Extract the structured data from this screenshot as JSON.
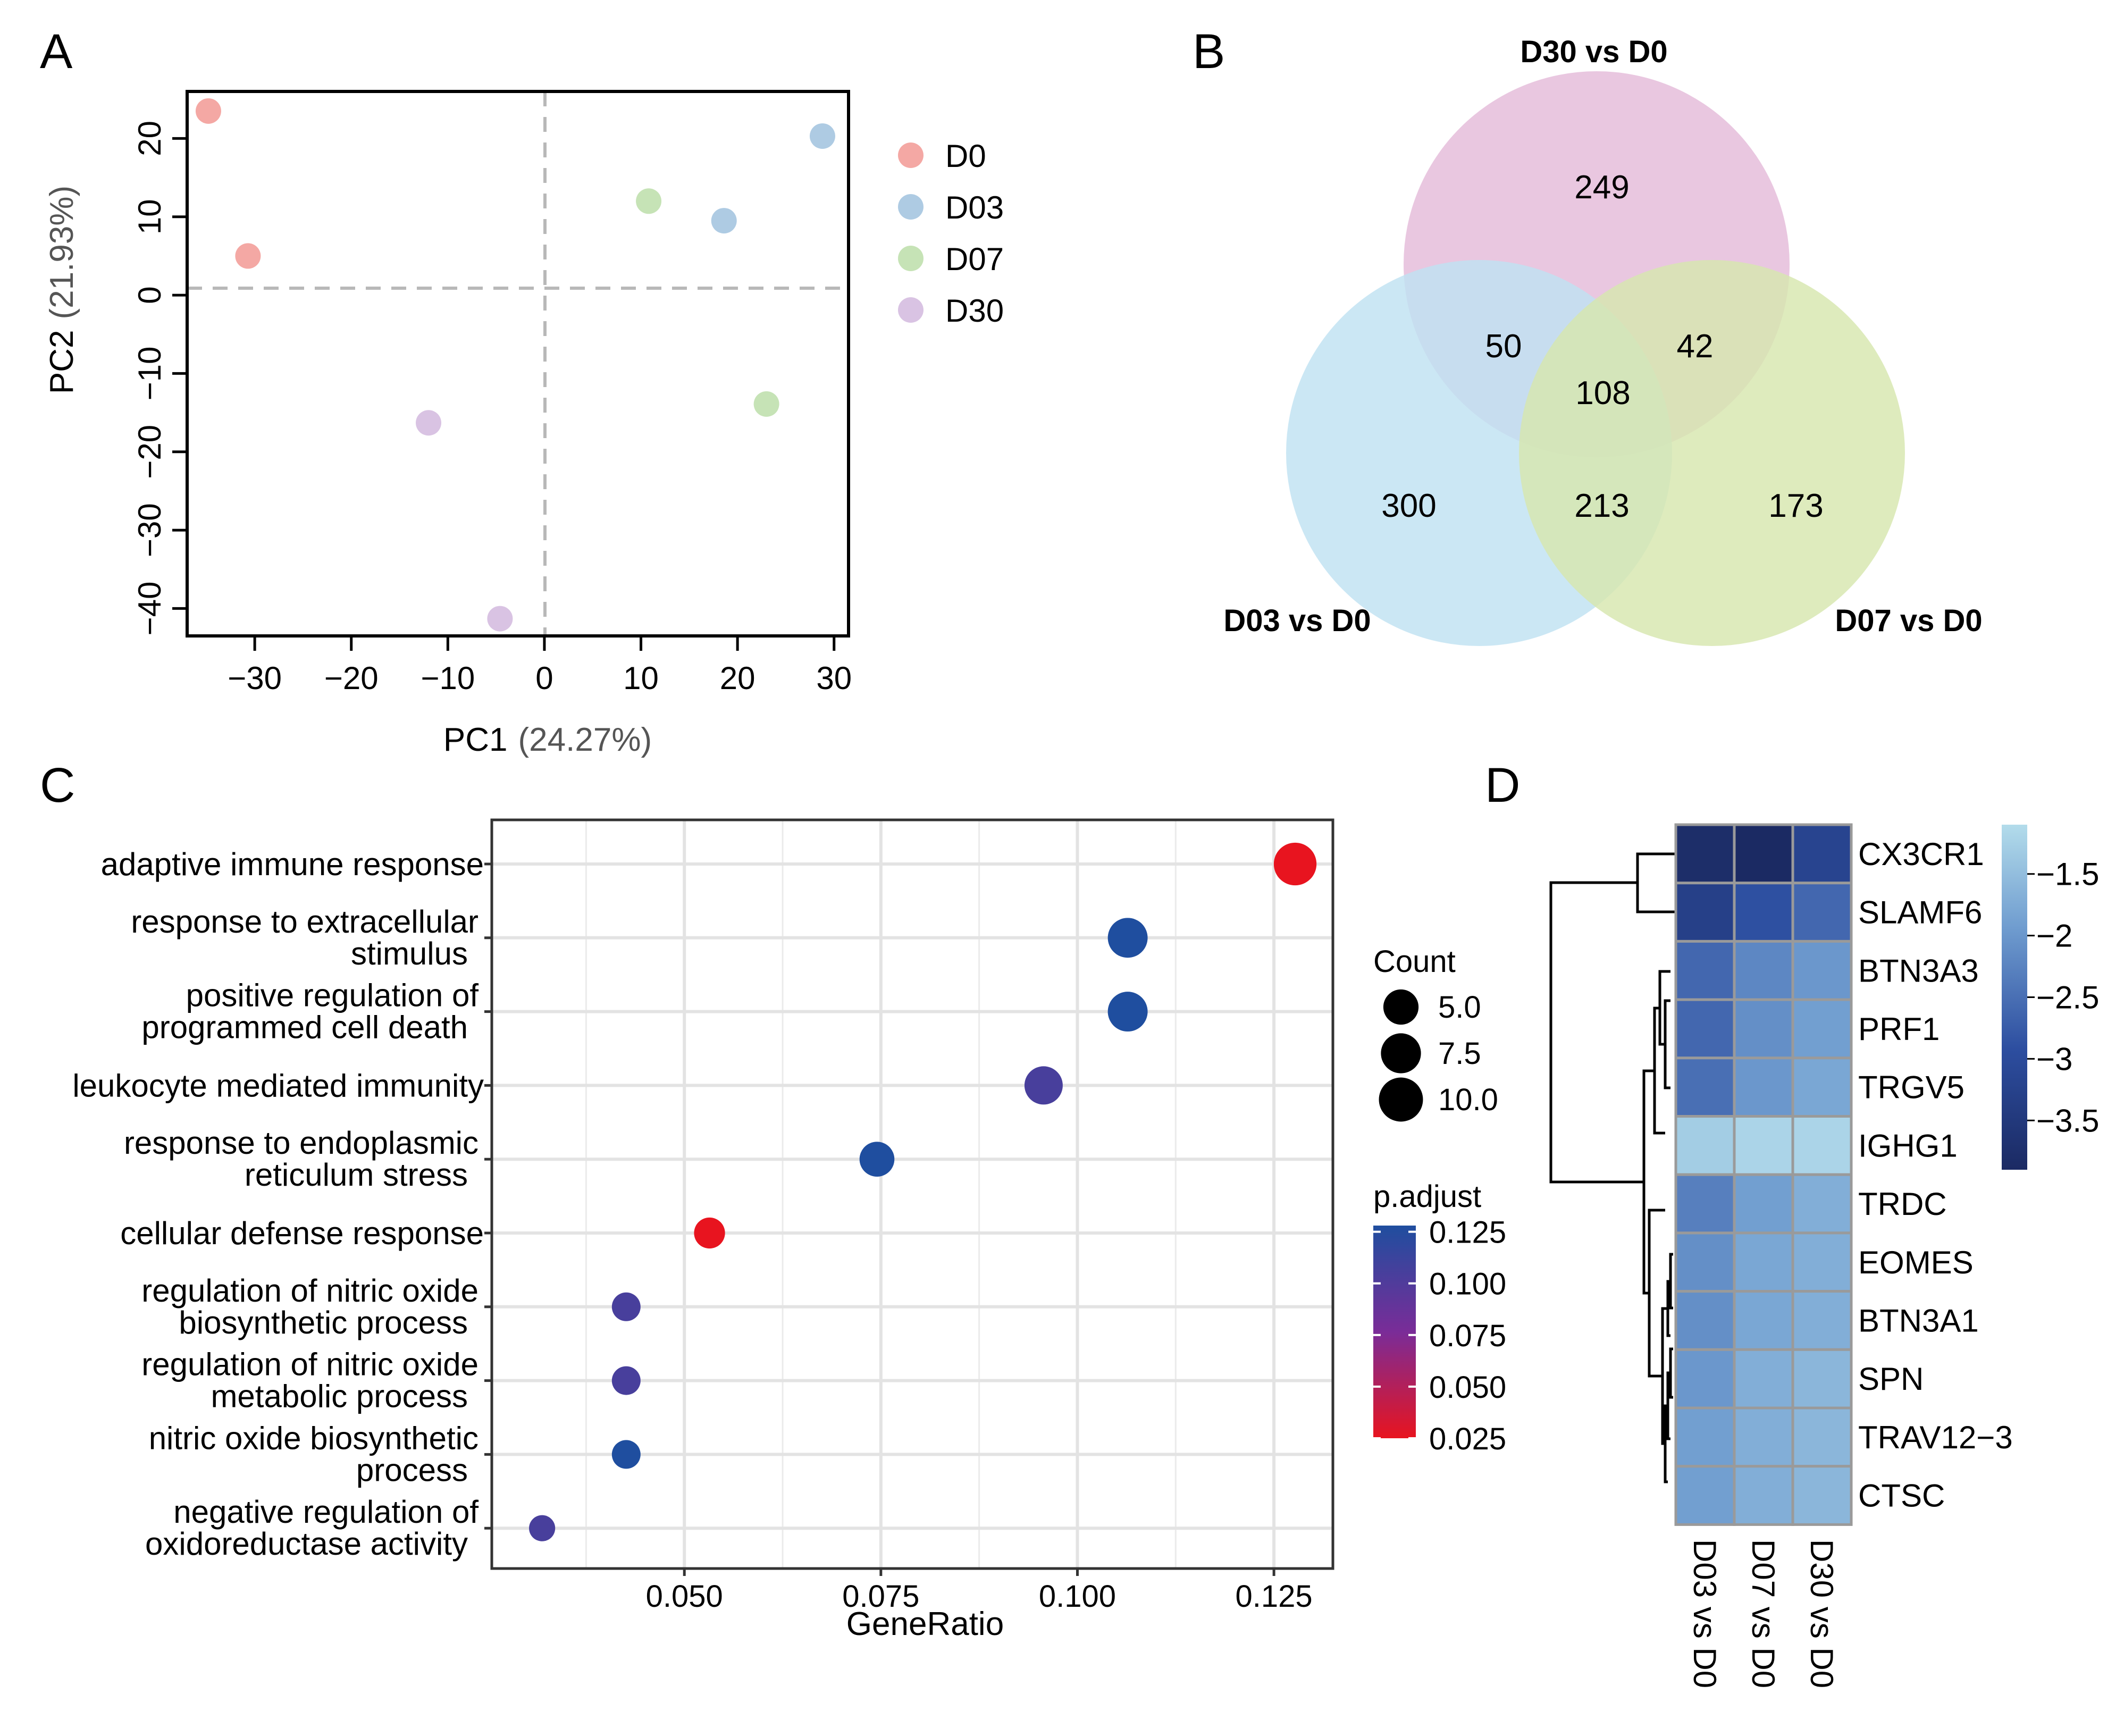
{
  "panels": {
    "A": "A",
    "B": "B",
    "C": "C",
    "D": "D"
  },
  "chart_data": [
    {
      "panel": "A",
      "type": "scatter",
      "xlabel": "PC1",
      "xlabel_pct": "(24.27%)",
      "ylabel": "PC2",
      "ylabel_pct": "(21.93%)",
      "xlim": [
        -37,
        31.5
      ],
      "ylim": [
        -43.5,
        26
      ],
      "xticks": [
        -30,
        -20,
        -10,
        0,
        10,
        20,
        30
      ],
      "xtick_labels": [
        "−30",
        "−20",
        "−10",
        "0",
        "10",
        "20",
        "30"
      ],
      "yticks": [
        -40,
        -30,
        -20,
        -10,
        0,
        10,
        20
      ],
      "ytick_labels": [
        "−40",
        "−30",
        "−20",
        "−10",
        "0",
        "10",
        "20"
      ],
      "reference_lines": {
        "x": 0,
        "y": 0
      },
      "legend": [
        {
          "label": "D0",
          "color": "#f4a8a4"
        },
        {
          "label": "D03",
          "color": "#aecbe3"
        },
        {
          "label": "D07",
          "color": "#c6e3b6"
        },
        {
          "label": "D30",
          "color": "#d9c3e3"
        }
      ],
      "points": [
        {
          "group": "D0",
          "x": -34.8,
          "y": 23.5
        },
        {
          "group": "D0",
          "x": -30.7,
          "y": 5.0
        },
        {
          "group": "D03",
          "x": 28.8,
          "y": 20.3
        },
        {
          "group": "D03",
          "x": 18.6,
          "y": 9.5
        },
        {
          "group": "D07",
          "x": 10.8,
          "y": 12.0
        },
        {
          "group": "D07",
          "x": 23.0,
          "y": -13.9
        },
        {
          "group": "D30",
          "x": -12.0,
          "y": -16.3
        },
        {
          "group": "D30",
          "x": -4.6,
          "y": -41.3
        }
      ]
    },
    {
      "panel": "B",
      "type": "venn",
      "sets": [
        {
          "label": "D30 vs D0",
          "color": "#e4bbd9"
        },
        {
          "label": "D03 vs D0",
          "color": "#bfe2f1"
        },
        {
          "label": "D07 vs D0",
          "color": "#d7e6ae"
        }
      ],
      "regions": [
        {
          "sets": [
            "D30 vs D0"
          ],
          "value": 249
        },
        {
          "sets": [
            "D03 vs D0"
          ],
          "value": 300
        },
        {
          "sets": [
            "D07 vs D0"
          ],
          "value": 173
        },
        {
          "sets": [
            "D30 vs D0",
            "D03 vs D0"
          ],
          "value": 50
        },
        {
          "sets": [
            "D30 vs D0",
            "D07 vs D0"
          ],
          "value": 42
        },
        {
          "sets": [
            "D03 vs D0",
            "D07 vs D0"
          ],
          "value": 213
        },
        {
          "sets": [
            "D30 vs D0",
            "D03 vs D0",
            "D07 vs D0"
          ],
          "value": 108
        }
      ]
    },
    {
      "panel": "C",
      "type": "scatter",
      "subtype": "go-enrichment-dotplot",
      "xlabel": "GeneRatio",
      "xlim": [
        0.0255,
        0.1325
      ],
      "xticks": [
        0.05,
        0.075,
        0.1,
        0.125
      ],
      "xtick_labels": [
        "0.050",
        "0.075",
        "0.100",
        "0.125"
      ],
      "terms": [
        {
          "label": [
            "adaptive immune response"
          ],
          "highlight": true,
          "gene_ratio": 0.1277,
          "count": 12,
          "p_adjust": 0.025
        },
        {
          "label": [
            "response to extracellular",
            "stimulus"
          ],
          "highlight": false,
          "gene_ratio": 0.1064,
          "count": 10,
          "p_adjust": 0.128
        },
        {
          "label": [
            "positive regulation of",
            "programmed cell death"
          ],
          "highlight": false,
          "gene_ratio": 0.1064,
          "count": 10,
          "p_adjust": 0.128
        },
        {
          "label": [
            "leukocyte mediated immunity"
          ],
          "highlight": false,
          "gene_ratio": 0.0957,
          "count": 9,
          "p_adjust": 0.105
        },
        {
          "label": [
            "response to endoplasmic",
            "reticulum stress"
          ],
          "highlight": false,
          "gene_ratio": 0.0745,
          "count": 7,
          "p_adjust": 0.128
        },
        {
          "label": [
            "cellular defense response"
          ],
          "highlight": false,
          "gene_ratio": 0.0532,
          "count": 5,
          "p_adjust": 0.025
        },
        {
          "label": [
            "regulation of nitric oxide",
            "biosynthetic process"
          ],
          "highlight": false,
          "gene_ratio": 0.0426,
          "count": 4,
          "p_adjust": 0.105
        },
        {
          "label": [
            "regulation of nitric oxide",
            "metabolic process"
          ],
          "highlight": false,
          "gene_ratio": 0.0426,
          "count": 4,
          "p_adjust": 0.105
        },
        {
          "label": [
            "nitric oxide biosynthetic",
            "process"
          ],
          "highlight": false,
          "gene_ratio": 0.0426,
          "count": 4,
          "p_adjust": 0.128
        },
        {
          "label": [
            "negative regulation of",
            "oxidoreductase activity"
          ],
          "highlight": false,
          "gene_ratio": 0.0319,
          "count": 3,
          "p_adjust": 0.105
        }
      ],
      "size_legend": {
        "title": "Count",
        "values": [
          5.0,
          7.5,
          10.0
        ],
        "labels": [
          "5.0",
          "7.5",
          "10.0"
        ]
      },
      "color_legend": {
        "title": "p.adjust",
        "range": [
          0.025,
          0.128
        ],
        "ticks": [
          0.125,
          0.1,
          0.075,
          0.05,
          0.025
        ],
        "tick_labels": [
          "0.125",
          "0.100",
          "0.075",
          "0.050",
          "0.025"
        ],
        "low_color": "#e8141f",
        "mid_color": "#7a2c98",
        "high_color": "#1f4e9f"
      }
    },
    {
      "panel": "D",
      "type": "heatmap",
      "rows": [
        "CX3CR1",
        "SLAMF6",
        "BTN3A3",
        "PRF1",
        "TRGV5",
        "IGHG1",
        "TRDC",
        "EOMES",
        "BTN3A1",
        "SPN",
        "TRAV12−3",
        "CTSC"
      ],
      "columns": [
        "D03 vs D0",
        "D07 vs D0",
        "D30 vs D0"
      ],
      "values": [
        [
          -3.8,
          -3.9,
          -3.2
        ],
        [
          -3.3,
          -2.9,
          -2.6
        ],
        [
          -2.6,
          -2.2,
          -2.0
        ],
        [
          -2.6,
          -2.1,
          -1.9
        ],
        [
          -2.5,
          -2.0,
          -1.8
        ],
        [
          -1.3,
          -1.2,
          -1.2
        ],
        [
          -2.3,
          -1.9,
          -1.7
        ],
        [
          -2.1,
          -1.8,
          -1.7
        ],
        [
          -2.1,
          -1.8,
          -1.7
        ],
        [
          -2.0,
          -1.7,
          -1.6
        ],
        [
          -1.9,
          -1.7,
          -1.6
        ],
        [
          -1.9,
          -1.7,
          -1.6
        ]
      ],
      "colorbar": {
        "range": [
          -3.9,
          -1.1
        ],
        "ticks": [
          -1.5,
          -2,
          -2.5,
          -3,
          -3.5
        ],
        "tick_labels": [
          "−1.5",
          "−2",
          "−2.5",
          "−3",
          "−3.5"
        ],
        "low_color": "#1b2a63",
        "high_color": "#b3dceb"
      }
    }
  ]
}
